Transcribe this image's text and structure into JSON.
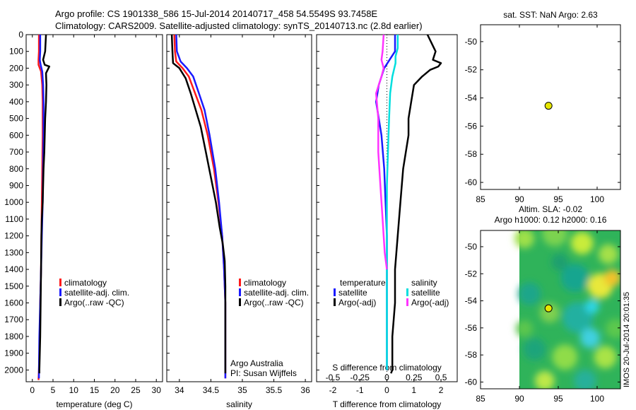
{
  "header": {
    "line1": "Argo profile: CS 1901338_586 15-Jul-2014 20140717_458 54.5549S 93.7458E",
    "line2": "Climatology: CARS2009. Satellite-adjusted climatology: synTS_20140713.nc (2.8d earlier)"
  },
  "side_label": "IMOS 20-Jul-2014 20:01:35",
  "colors": {
    "climatology": "#ff1a1a",
    "satellite": "#1a1aff",
    "argo": "#000000",
    "sal_sat": "#00dede",
    "sal_argo": "#ff33ff"
  },
  "chart_data": [
    {
      "id": "temperature",
      "type": "line",
      "xlabel": "temperature (deg C)",
      "ylabel": "",
      "xlim": [
        -1.5,
        31.5
      ],
      "ylim": [
        0,
        2070
      ],
      "y_reversed": true,
      "xticks": [
        0,
        5,
        10,
        15,
        20,
        25,
        30
      ],
      "yticks": [
        0,
        100,
        200,
        300,
        400,
        500,
        600,
        700,
        800,
        900,
        1000,
        1100,
        1200,
        1300,
        1400,
        1500,
        1600,
        1700,
        1800,
        1900,
        2000
      ],
      "legend": [
        "climatology",
        "satellite-adj. clim.",
        "Argo(..raw -QC)"
      ],
      "series": [
        {
          "name": "climatology",
          "color": "#ff1a1a",
          "x": [
            1.6,
            1.6,
            1.5,
            1.5,
            2.1,
            2.4,
            2.5,
            2.5,
            2.4,
            2.3,
            2.2,
            2.1,
            1.9,
            1.8,
            1.6,
            1.5
          ],
          "y": [
            0,
            100,
            150,
            180,
            220,
            300,
            400,
            600,
            800,
            1000,
            1200,
            1400,
            1600,
            1800,
            2000,
            2060
          ]
        },
        {
          "name": "satellite-adj. clim.",
          "color": "#1a1aff",
          "x": [
            1.9,
            1.9,
            1.8,
            2.0,
            2.4,
            2.6,
            2.7,
            2.7,
            2.6,
            2.5,
            2.3,
            2.1,
            1.9,
            1.7,
            1.6,
            1.6
          ],
          "y": [
            0,
            100,
            150,
            180,
            220,
            300,
            400,
            600,
            800,
            1000,
            1200,
            1400,
            1600,
            1800,
            2000,
            2050
          ]
        },
        {
          "name": "Argo(..raw -QC)",
          "color": "#000000",
          "x": [
            3.3,
            3.1,
            2.6,
            3.0,
            4.1,
            3.3,
            3.4,
            3.3,
            3.1,
            3.0,
            2.9,
            2.7,
            2.6,
            2.5,
            2.3,
            2.2,
            2.1,
            2.0,
            1.9,
            1.8,
            1.7,
            1.7
          ],
          "y": [
            0,
            100,
            150,
            180,
            190,
            230,
            300,
            400,
            500,
            600,
            700,
            800,
            900,
            1000,
            1100,
            1200,
            1400,
            1600,
            1800,
            1900,
            2000,
            2020
          ]
        }
      ]
    },
    {
      "id": "salinity",
      "type": "line",
      "xlabel": "salinity",
      "ylabel": "",
      "xlim": [
        33.8,
        36.1
      ],
      "ylim": [
        0,
        2070
      ],
      "y_reversed": true,
      "xticks": [
        34,
        34.5,
        35,
        35.5,
        36
      ],
      "xticklabels": [
        "34",
        "34.5",
        "35",
        "35.5",
        "36"
      ],
      "legend": [
        "climatology",
        "satellite-adj. clim.",
        "Argo(..raw -QC)"
      ],
      "annotation": [
        "Argo Australia",
        "PI: Susan Wijffels"
      ],
      "series": [
        {
          "name": "climatology",
          "color": "#ff1a1a",
          "x": [
            33.92,
            33.93,
            33.95,
            34.05,
            34.15,
            34.25,
            34.35,
            34.45,
            34.55,
            34.62,
            34.68,
            34.71,
            34.73,
            34.73,
            34.73,
            34.73
          ],
          "y": [
            0,
            100,
            160,
            200,
            250,
            350,
            450,
            600,
            800,
            1000,
            1200,
            1400,
            1600,
            1800,
            2000,
            2050
          ]
        },
        {
          "name": "satellite-adj. clim.",
          "color": "#1a1aff",
          "x": [
            33.95,
            33.96,
            34.02,
            34.12,
            34.22,
            34.31,
            34.4,
            34.48,
            34.57,
            34.63,
            34.68,
            34.71,
            34.73,
            34.73,
            34.73,
            34.73
          ],
          "y": [
            0,
            100,
            160,
            200,
            250,
            350,
            450,
            600,
            800,
            1000,
            1200,
            1400,
            1600,
            1800,
            2000,
            2050
          ]
        },
        {
          "name": "Argo(..raw -QC)",
          "color": "#000000",
          "x": [
            33.88,
            33.89,
            33.9,
            34.0,
            34.1,
            34.18,
            34.26,
            34.34,
            34.42,
            34.5,
            34.58,
            34.64,
            34.69,
            34.72,
            34.73,
            34.73,
            34.73
          ],
          "y": [
            0,
            100,
            170,
            200,
            260,
            350,
            450,
            550,
            700,
            850,
            1000,
            1150,
            1250,
            1350,
            1500,
            1800,
            2020
          ]
        }
      ]
    },
    {
      "id": "difference",
      "type": "line",
      "xlabel": "T difference from climatology",
      "xlabel_top": "S difference from climatology",
      "xlim": [
        -2.6,
        2.6
      ],
      "ylim": [
        0,
        2070
      ],
      "y_reversed": true,
      "xticks": [
        -2,
        -1,
        0,
        1,
        2
      ],
      "xticks_top": [
        -0.5,
        -0.25,
        0,
        0.25,
        0.5
      ],
      "xticklabels_top": [
        "-0.5",
        "-0.25",
        "0",
        "0.25",
        "0.5"
      ],
      "legend_groups": [
        {
          "title": "temperature",
          "items": [
            "satellite",
            "Argo(-adj)"
          ]
        },
        {
          "title": "salinity",
          "items": [
            "satellite",
            "Argo(-adj)"
          ]
        }
      ],
      "series": [
        {
          "name": "temperature satellite",
          "color": "#1a1aff",
          "x": [
            0.3,
            0.3,
            0.1,
            -0.1,
            -0.3,
            -0.4,
            -0.3,
            -0.2,
            -0.1,
            -0.05,
            0.0,
            0.0,
            0.0,
            0.0
          ],
          "y": [
            0,
            100,
            150,
            200,
            300,
            400,
            500,
            600,
            800,
            1000,
            1200,
            1500,
            1800,
            2000
          ]
        },
        {
          "name": "temperature Argo(-adj)",
          "color": "#000000",
          "x": [
            1.5,
            1.8,
            1.7,
            2.0,
            1.9,
            1.6,
            1.3,
            1.0,
            0.9,
            0.8,
            0.8,
            0.6,
            0.5,
            0.4,
            0.3,
            0.3,
            0.2,
            0.2,
            0.15
          ],
          "y": [
            0,
            100,
            150,
            170,
            190,
            210,
            250,
            300,
            400,
            500,
            600,
            800,
            1000,
            1200,
            1400,
            1600,
            1800,
            2000,
            2020
          ]
        },
        {
          "name": "salinity satellite",
          "color": "#00dede",
          "x": [
            0.1,
            0.1,
            0.08,
            0.08,
            0.05,
            0.03,
            0.02,
            0.01,
            0.0,
            0.0,
            0.0,
            0.0,
            0.0
          ],
          "y": [
            0,
            80,
            130,
            170,
            250,
            350,
            500,
            700,
            900,
            1200,
            1500,
            1800,
            2000
          ]
        },
        {
          "name": "salinity Argo(-adj)",
          "color": "#ff33ff",
          "x": [
            -0.03,
            -0.04,
            -0.05,
            -0.03,
            -0.05,
            -0.1,
            -0.08,
            -0.08,
            -0.06,
            -0.04,
            -0.02,
            0.0
          ],
          "y": [
            0,
            100,
            150,
            200,
            250,
            350,
            500,
            700,
            900,
            1100,
            1300,
            1400
          ]
        }
      ]
    },
    {
      "id": "sst-map",
      "type": "scatter",
      "title": "sat. SST: NaN Argo: 2.63",
      "xlim": [
        85,
        103
      ],
      "ylim": [
        -60.5,
        -48.8
      ],
      "xticks": [
        85,
        90,
        95,
        100
      ],
      "yticks": [
        -50,
        -52,
        -54,
        -56,
        -58,
        -60
      ],
      "points": [
        {
          "x": 93.7458,
          "y": -54.5549
        }
      ]
    },
    {
      "id": "sla-map",
      "type": "heatmap",
      "title_lines": [
        "Altim. SLA: -0.02",
        "Argo h1000: 0.12 h2000: 0.16"
      ],
      "xlim": [
        85,
        103
      ],
      "ylim": [
        -60.5,
        -48.8
      ],
      "xticks": [
        85,
        90,
        95,
        100
      ],
      "yticks": [
        -50,
        -52,
        -54,
        -56,
        -58,
        -60
      ],
      "field_extent": {
        "lon": [
          90,
          103
        ],
        "lat": [
          -60.5,
          -48.8
        ]
      },
      "points": [
        {
          "x": 93.7458,
          "y": -54.5549
        }
      ]
    }
  ]
}
